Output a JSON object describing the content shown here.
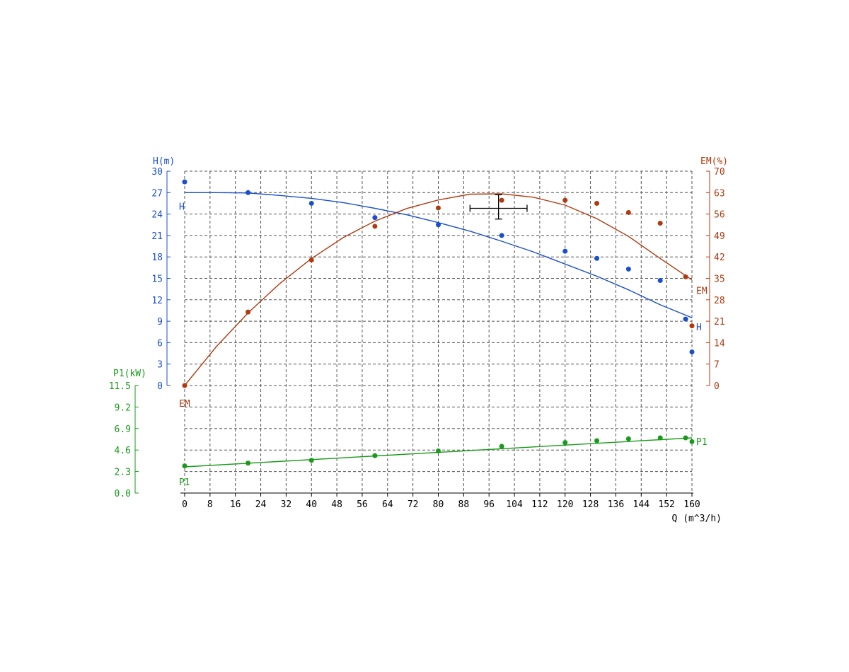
{
  "chart_data": {
    "type": "line",
    "xlabel": "Q (m^3/h)",
    "x_ticks": [
      0,
      8,
      16,
      24,
      32,
      40,
      48,
      56,
      64,
      72,
      80,
      88,
      96,
      104,
      112,
      120,
      128,
      136,
      144,
      152,
      160
    ],
    "xlim": [
      0,
      160
    ],
    "grid": true,
    "axes": {
      "H": {
        "label": "H(m)",
        "ticks": [
          "0",
          "3",
          "6",
          "9",
          "12",
          "15",
          "18",
          "21",
          "24",
          "27",
          "30"
        ],
        "ylim": [
          0,
          30
        ],
        "color": "#1a4fcc",
        "position": "left"
      },
      "EM": {
        "label": "EM(%)",
        "ticks": [
          "0",
          "7",
          "14",
          "21",
          "28",
          "35",
          "42",
          "49",
          "56",
          "63",
          "70"
        ],
        "ylim": [
          0,
          70
        ],
        "color": "#b03a10",
        "position": "right"
      },
      "P1": {
        "label": "P1(kW)",
        "ticks": [
          "0.0",
          "2.3",
          "4.6",
          "6.9",
          "9.2",
          "11.5"
        ],
        "ylim": [
          0,
          11.5
        ],
        "color": "#1a9a1a",
        "position": "left-lower"
      }
    },
    "series": [
      {
        "name": "H",
        "axis": "H",
        "points": [
          [
            0,
            28.5
          ],
          [
            20,
            27.0
          ],
          [
            40,
            25.5
          ],
          [
            60,
            23.5
          ],
          [
            80,
            22.5
          ],
          [
            100,
            21.0
          ],
          [
            120,
            18.8
          ],
          [
            130,
            17.8
          ],
          [
            140,
            16.3
          ],
          [
            150,
            14.7
          ],
          [
            158,
            9.3
          ],
          [
            160,
            4.7
          ]
        ],
        "fit": [
          [
            0,
            27.0
          ],
          [
            10,
            27.0
          ],
          [
            20,
            26.95
          ],
          [
            30,
            26.6
          ],
          [
            40,
            26.2
          ],
          [
            50,
            25.6
          ],
          [
            60,
            24.8
          ],
          [
            70,
            23.9
          ],
          [
            80,
            22.8
          ],
          [
            90,
            21.6
          ],
          [
            100,
            20.2
          ],
          [
            110,
            18.7
          ],
          [
            120,
            17.0
          ],
          [
            130,
            15.3
          ],
          [
            140,
            13.4
          ],
          [
            150,
            11.3
          ],
          [
            160,
            9.5
          ]
        ]
      },
      {
        "name": "EM",
        "axis": "EM",
        "points": [
          [
            0,
            0
          ],
          [
            20,
            24
          ],
          [
            40,
            41
          ],
          [
            60,
            52
          ],
          [
            80,
            58
          ],
          [
            100,
            60.5
          ],
          [
            120,
            60.5
          ],
          [
            130,
            59.5
          ],
          [
            140,
            56.5
          ],
          [
            150,
            53
          ],
          [
            158,
            35.5
          ],
          [
            160,
            19.5
          ]
        ],
        "fit": [
          [
            0,
            0
          ],
          [
            10,
            12.7
          ],
          [
            20,
            23.7
          ],
          [
            30,
            33.3
          ],
          [
            40,
            41.5
          ],
          [
            50,
            48.3
          ],
          [
            60,
            53.7
          ],
          [
            70,
            57.8
          ],
          [
            80,
            60.6
          ],
          [
            90,
            62.5
          ],
          [
            100,
            62.6
          ],
          [
            110,
            61.5
          ],
          [
            120,
            58.9
          ],
          [
            130,
            54.5
          ],
          [
            140,
            48.7
          ],
          [
            150,
            41.5
          ],
          [
            160,
            34.5
          ]
        ]
      },
      {
        "name": "P1",
        "axis": "P1",
        "points": [
          [
            0,
            2.9
          ],
          [
            20,
            3.2
          ],
          [
            40,
            3.5
          ],
          [
            60,
            4.0
          ],
          [
            80,
            4.5
          ],
          [
            100,
            5.0
          ],
          [
            120,
            5.4
          ],
          [
            130,
            5.6
          ],
          [
            140,
            5.8
          ],
          [
            150,
            5.9
          ],
          [
            158,
            5.9
          ],
          [
            160,
            5.5
          ]
        ],
        "fit": [
          [
            0,
            2.8
          ],
          [
            160,
            5.9
          ]
        ]
      }
    ],
    "operating_point": {
      "x": 99,
      "y_H": 24.8,
      "x_err": [
        90,
        108
      ],
      "y_err_H": [
        23.3,
        26.7
      ]
    }
  }
}
